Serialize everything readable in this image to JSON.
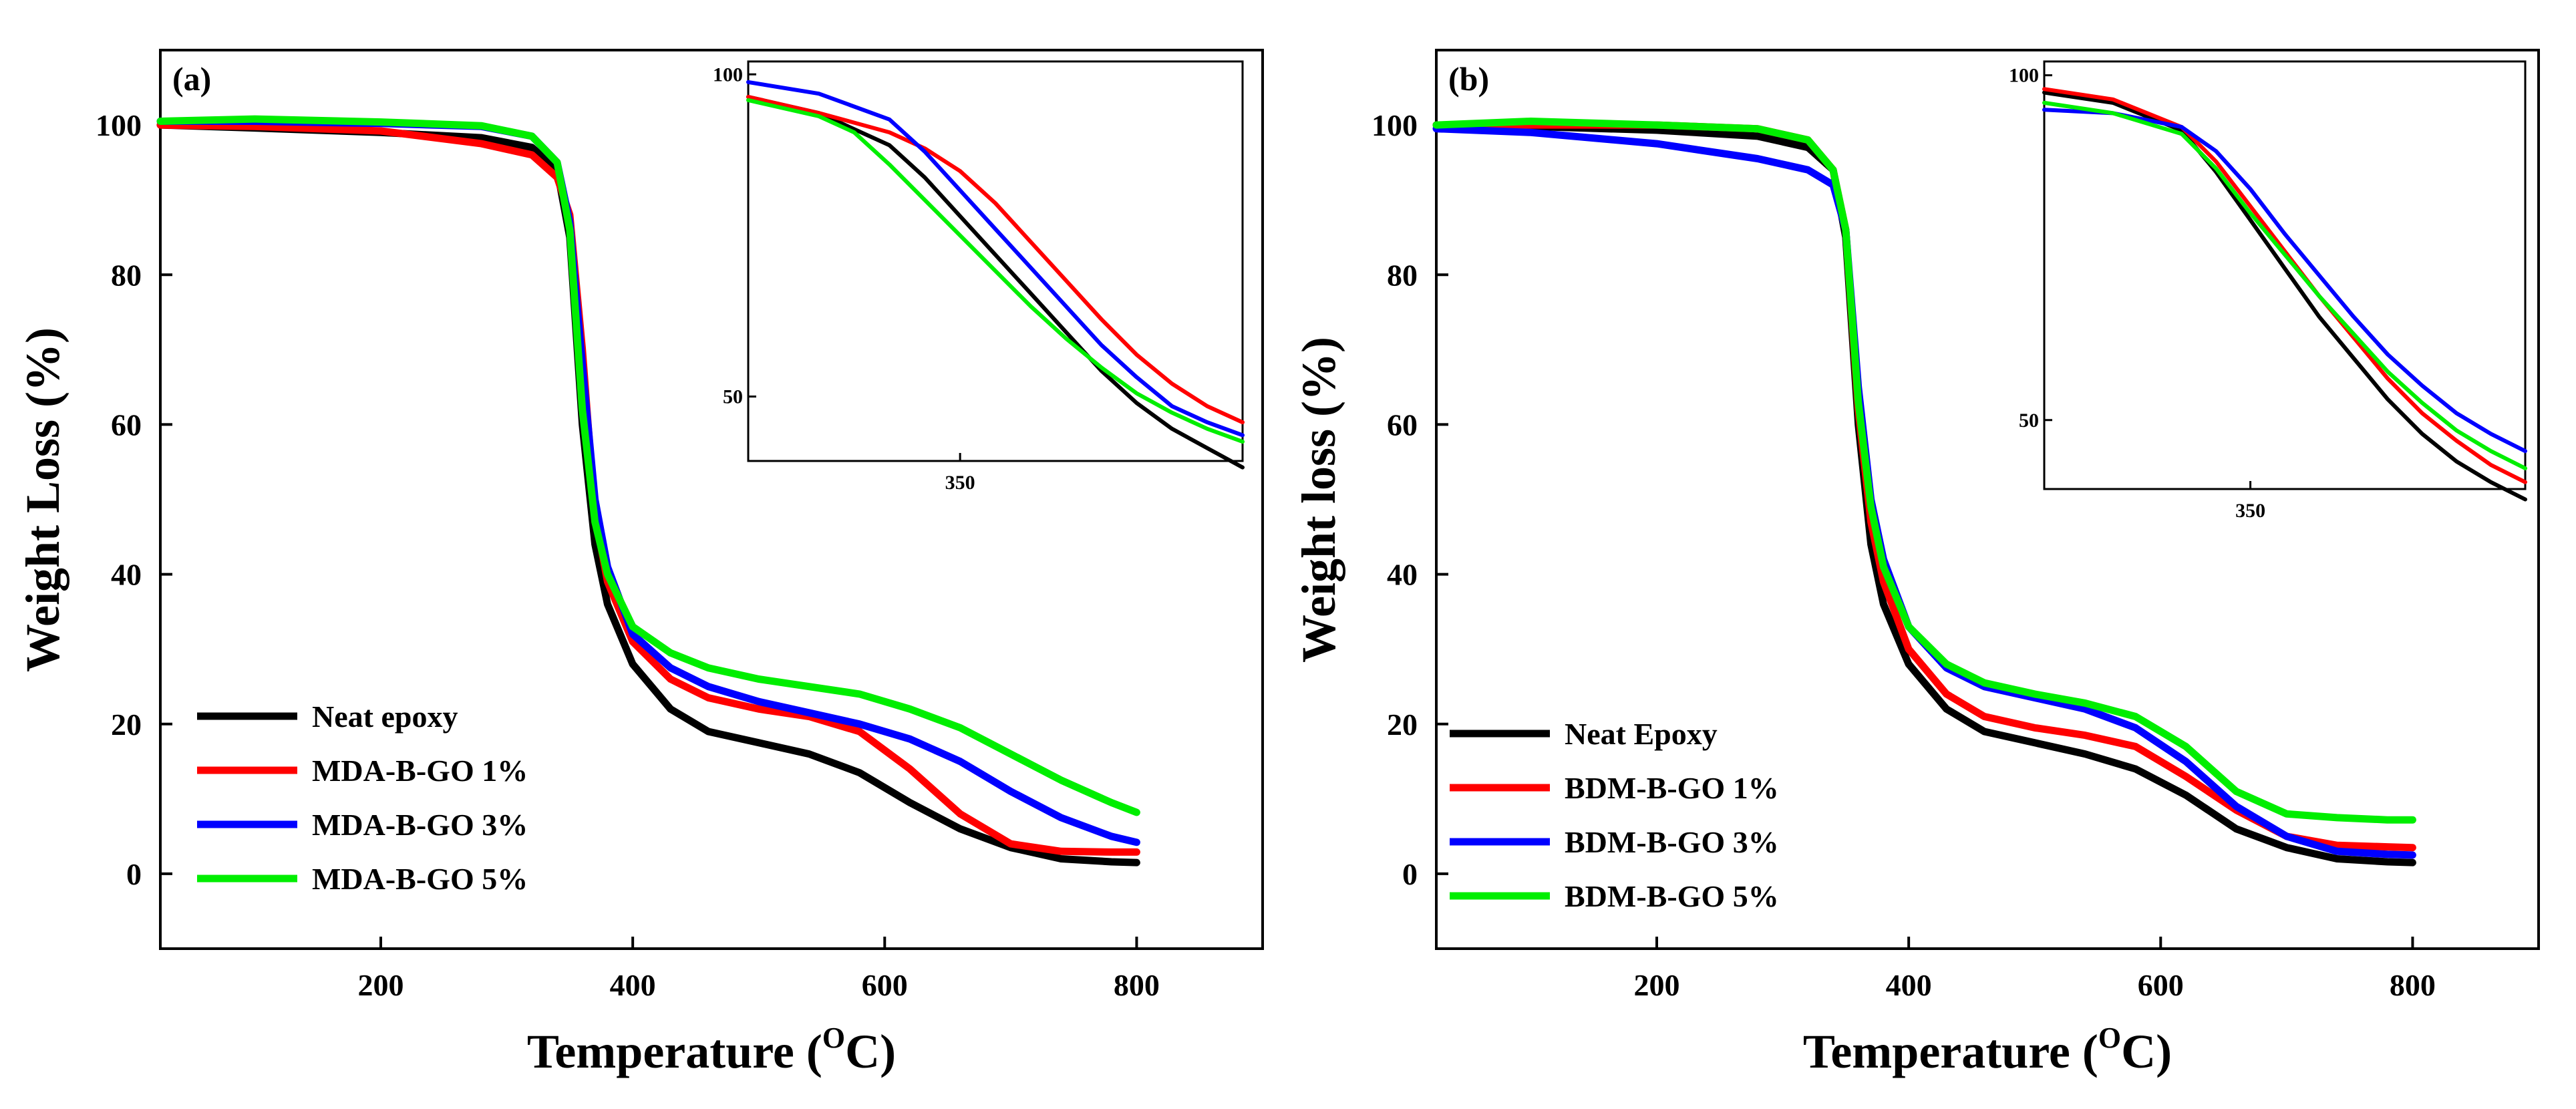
{
  "chart_data": [
    {
      "type": "line",
      "panel_label": "(a)",
      "xlabel": "Temperature (",
      "xlabel_sup": "O",
      "xlabel_end": "C)",
      "ylabel": "Weight Loss (%)",
      "xlim": [
        25,
        900
      ],
      "ylim": [
        -10,
        110
      ],
      "xticks": [
        200,
        400,
        600,
        800
      ],
      "yticks": [
        0,
        20,
        40,
        60,
        80,
        100
      ],
      "legend_position": "bottom-left",
      "series": [
        {
          "name": "Neat epoxy",
          "color": "#000000",
          "x": [
            25,
            100,
            200,
            280,
            320,
            340,
            350,
            360,
            370,
            380,
            400,
            430,
            460,
            500,
            540,
            580,
            620,
            660,
            700,
            740,
            780,
            800
          ],
          "y": [
            100,
            99.6,
            99.0,
            98.3,
            97,
            94,
            85,
            60,
            44,
            36,
            28,
            22,
            19,
            17.5,
            16,
            13.5,
            9.5,
            6,
            3.5,
            2,
            1.6,
            1.5
          ]
        },
        {
          "name": "MDA-B-GO 1%",
          "color": "#ff0000",
          "x": [
            25,
            100,
            200,
            280,
            320,
            340,
            350,
            360,
            370,
            380,
            400,
            430,
            460,
            500,
            540,
            580,
            620,
            660,
            700,
            740,
            780,
            800
          ],
          "y": [
            100,
            99.8,
            99.2,
            97.5,
            96,
            93,
            88,
            70,
            48,
            39,
            31,
            26,
            23.5,
            22,
            21,
            19,
            14,
            8,
            4,
            3,
            2.9,
            2.9
          ]
        },
        {
          "name": "MDA-B-GO 3%",
          "color": "#0000ff",
          "x": [
            25,
            100,
            200,
            280,
            320,
            340,
            350,
            360,
            370,
            380,
            400,
            430,
            460,
            500,
            540,
            580,
            620,
            660,
            700,
            740,
            780,
            800
          ],
          "y": [
            100.5,
            100.5,
            100.2,
            99.8,
            98.5,
            95,
            87,
            68,
            50,
            41,
            32,
            27.5,
            25,
            23,
            21.5,
            20,
            18,
            15,
            11,
            7.5,
            5,
            4.2
          ]
        },
        {
          "name": "MDA-B-GO 5%",
          "color": "#00ee00",
          "x": [
            25,
            100,
            200,
            280,
            320,
            340,
            350,
            360,
            370,
            380,
            400,
            430,
            460,
            500,
            540,
            580,
            620,
            660,
            700,
            740,
            780,
            800
          ],
          "y": [
            100.5,
            100.8,
            100.4,
            99.9,
            98.5,
            95,
            86,
            62,
            47,
            40,
            33,
            29.5,
            27.5,
            26,
            25,
            24,
            22,
            19.5,
            16,
            12.5,
            9.5,
            8.2
          ]
        }
      ],
      "inset": {
        "xtick": 350,
        "ytick_top": 100,
        "ytick_bottom": 50,
        "xlim": [
          320,
          390
        ],
        "ylim": [
          40,
          102
        ],
        "series": [
          {
            "name": "Neat epoxy",
            "color": "#000000",
            "x": [
              320,
              330,
              340,
              345,
              350,
              355,
              360,
              365,
              370,
              375,
              380,
              385,
              390
            ],
            "y": [
              96.5,
              94,
              89,
              84,
              78,
              72,
              66,
              60,
              54,
              49,
              45,
              42,
              39
            ]
          },
          {
            "name": "MDA-B-GO 1%",
            "color": "#ff0000",
            "x": [
              320,
              330,
              335,
              340,
              345,
              350,
              355,
              360,
              365,
              370,
              375,
              380,
              385,
              390
            ],
            "y": [
              96.5,
              94,
              92.5,
              91,
              88.5,
              85,
              80,
              74,
              68,
              62,
              56.5,
              52,
              48.5,
              46
            ]
          },
          {
            "name": "MDA-B-GO 3%",
            "color": "#0000ff",
            "x": [
              320,
              330,
              340,
              345,
              350,
              355,
              360,
              365,
              370,
              375,
              380,
              385,
              390
            ],
            "y": [
              98.8,
              97,
              93,
              88,
              82,
              76,
              70,
              64,
              58,
              53,
              48.5,
              46,
              44
            ]
          },
          {
            "name": "MDA-B-GO 5%",
            "color": "#00ee00",
            "x": [
              320,
              330,
              335,
              340,
              345,
              350,
              355,
              360,
              365,
              370,
              375,
              380,
              385,
              390
            ],
            "y": [
              96,
              93.5,
              91,
              86,
              80.5,
              75,
              69.5,
              64,
              59,
              54.5,
              50.5,
              47.5,
              45,
              43
            ]
          }
        ]
      }
    },
    {
      "type": "line",
      "panel_label": "(b)",
      "xlabel": "Temperature (",
      "xlabel_sup": "O",
      "xlabel_end": "C)",
      "ylabel": "Weight loss (%)",
      "xlim": [
        25,
        900
      ],
      "ylim": [
        -10,
        110
      ],
      "xticks": [
        200,
        400,
        600,
        800
      ],
      "yticks": [
        0,
        20,
        40,
        60,
        80,
        100
      ],
      "legend_position": "bottom-left",
      "series": [
        {
          "name": "Neat Epoxy",
          "color": "#000000",
          "x": [
            25,
            100,
            200,
            280,
            320,
            340,
            350,
            360,
            370,
            380,
            400,
            430,
            460,
            500,
            540,
            580,
            620,
            660,
            700,
            740,
            780,
            800
          ],
          "y": [
            100,
            99.8,
            99.3,
            98.5,
            97,
            94,
            85,
            60,
            44,
            36,
            28,
            22,
            19,
            17.5,
            16,
            14,
            10.5,
            6,
            3.5,
            2,
            1.6,
            1.5
          ]
        },
        {
          "name": "BDM-B-GO 1%",
          "color": "#ff0000",
          "x": [
            25,
            100,
            200,
            280,
            320,
            340,
            350,
            360,
            370,
            380,
            400,
            430,
            460,
            500,
            540,
            580,
            620,
            660,
            700,
            740,
            780,
            800
          ],
          "y": [
            100,
            100,
            100,
            99.5,
            98,
            94,
            86,
            62,
            47,
            39,
            30,
            24,
            21,
            19.5,
            18.5,
            17,
            13,
            8.5,
            5,
            3.8,
            3.6,
            3.5
          ]
        },
        {
          "name": "BDM-B-GO 3%",
          "color": "#0000ff",
          "x": [
            25,
            100,
            200,
            280,
            320,
            340,
            350,
            360,
            370,
            380,
            400,
            430,
            460,
            500,
            540,
            580,
            620,
            660,
            700,
            740,
            780,
            800
          ],
          "y": [
            99.5,
            99,
            97.5,
            95.5,
            94,
            92,
            86,
            65,
            50,
            42,
            33,
            27.5,
            25,
            23.5,
            22,
            19.5,
            15,
            9,
            5,
            3,
            2.6,
            2.5
          ]
        },
        {
          "name": "BDM-B-GO 5%",
          "color": "#00ee00",
          "x": [
            25,
            100,
            200,
            280,
            320,
            340,
            350,
            360,
            370,
            380,
            400,
            430,
            460,
            500,
            540,
            580,
            620,
            660,
            700,
            740,
            780,
            800
          ],
          "y": [
            100,
            100.5,
            100,
            99.5,
            98,
            94,
            86,
            63,
            49,
            41,
            33,
            28,
            25.5,
            24,
            22.8,
            21,
            17,
            11,
            8,
            7.5,
            7.2,
            7.2
          ]
        }
      ],
      "inset": {
        "xtick": 350,
        "ytick_top": 100,
        "ytick_bottom": 50,
        "xlim": [
          320,
          390
        ],
        "ylim": [
          40,
          102
        ],
        "series": [
          {
            "name": "Neat Epoxy",
            "color": "#000000",
            "x": [
              320,
              330,
              340,
              345,
              350,
              355,
              360,
              365,
              370,
              375,
              380,
              385,
              390
            ],
            "y": [
              97.5,
              96,
              92,
              86,
              79,
              72,
              65,
              59,
              53,
              48,
              44,
              41,
              38.5
            ]
          },
          {
            "name": "BDM-B-GO 1%",
            "color": "#ff0000",
            "x": [
              320,
              330,
              340,
              345,
              350,
              355,
              360,
              365,
              370,
              375,
              380,
              385,
              390
            ],
            "y": [
              98,
              96.5,
              92.5,
              87.5,
              81,
              74.5,
              68,
              62,
              56,
              51,
              47,
              43.5,
              41
            ]
          },
          {
            "name": "BDM-B-GO 3%",
            "color": "#0000ff",
            "x": [
              320,
              330,
              340,
              345,
              350,
              355,
              360,
              365,
              370,
              375,
              380,
              385,
              390
            ],
            "y": [
              95,
              94.5,
              92.5,
              89,
              83.5,
              77,
              71,
              65,
              59.5,
              55,
              51,
              48,
              45.5
            ]
          },
          {
            "name": "BDM-B-GO 5%",
            "color": "#00ee00",
            "x": [
              320,
              330,
              340,
              345,
              350,
              355,
              360,
              365,
              370,
              375,
              380,
              385,
              390
            ],
            "y": [
              96,
              94.5,
              91.5,
              86.5,
              80,
              74,
              68,
              62.5,
              57,
              52.5,
              48.5,
              45.5,
              43
            ]
          }
        ]
      }
    }
  ]
}
